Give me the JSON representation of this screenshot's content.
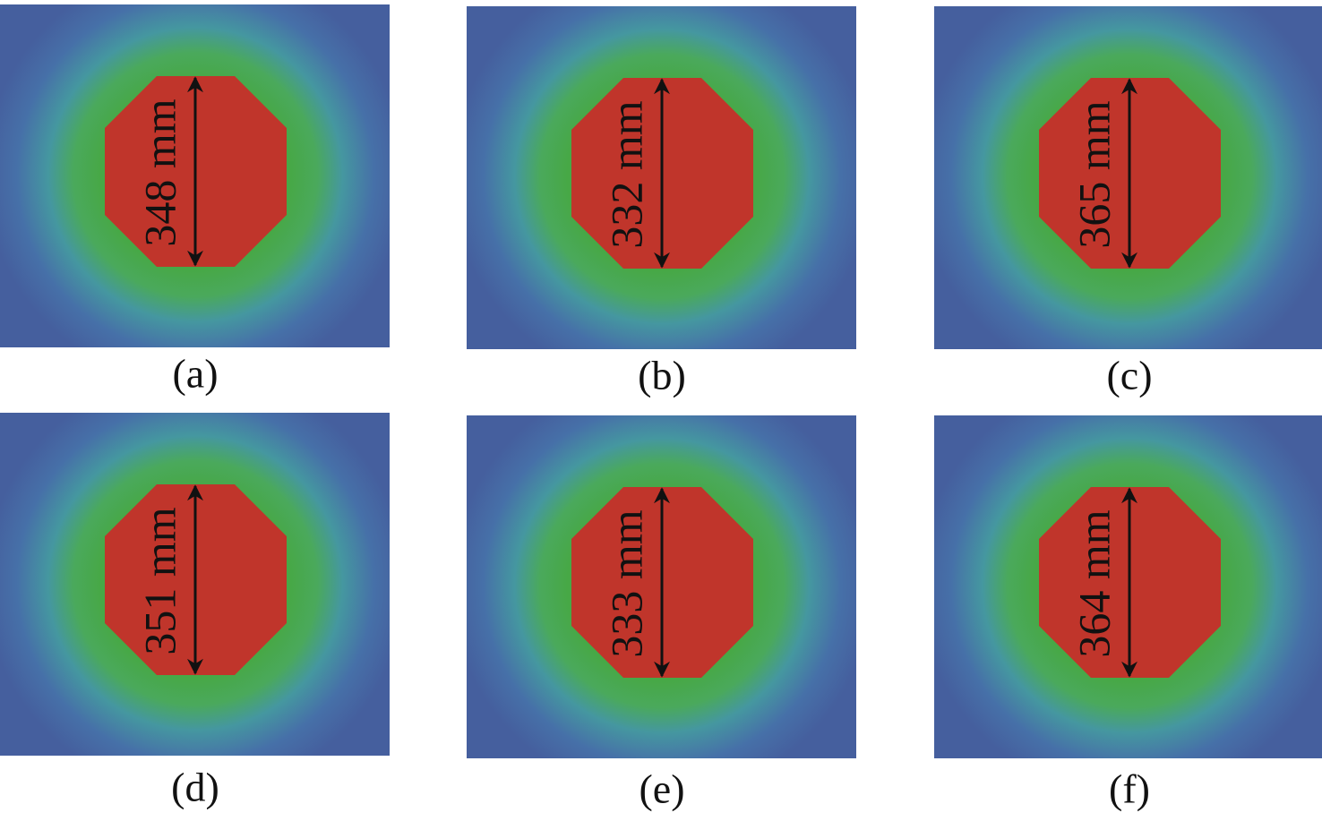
{
  "panels": [
    {
      "measurement": "348 mm",
      "caption": "(a)"
    },
    {
      "measurement": "332 mm",
      "caption": "(b)"
    },
    {
      "measurement": "365 mm",
      "caption": "(c)"
    },
    {
      "measurement": "351 mm",
      "caption": "(d)"
    },
    {
      "measurement": "333 mm",
      "caption": "(e)"
    },
    {
      "measurement": "364 mm",
      "caption": "(f)"
    }
  ]
}
